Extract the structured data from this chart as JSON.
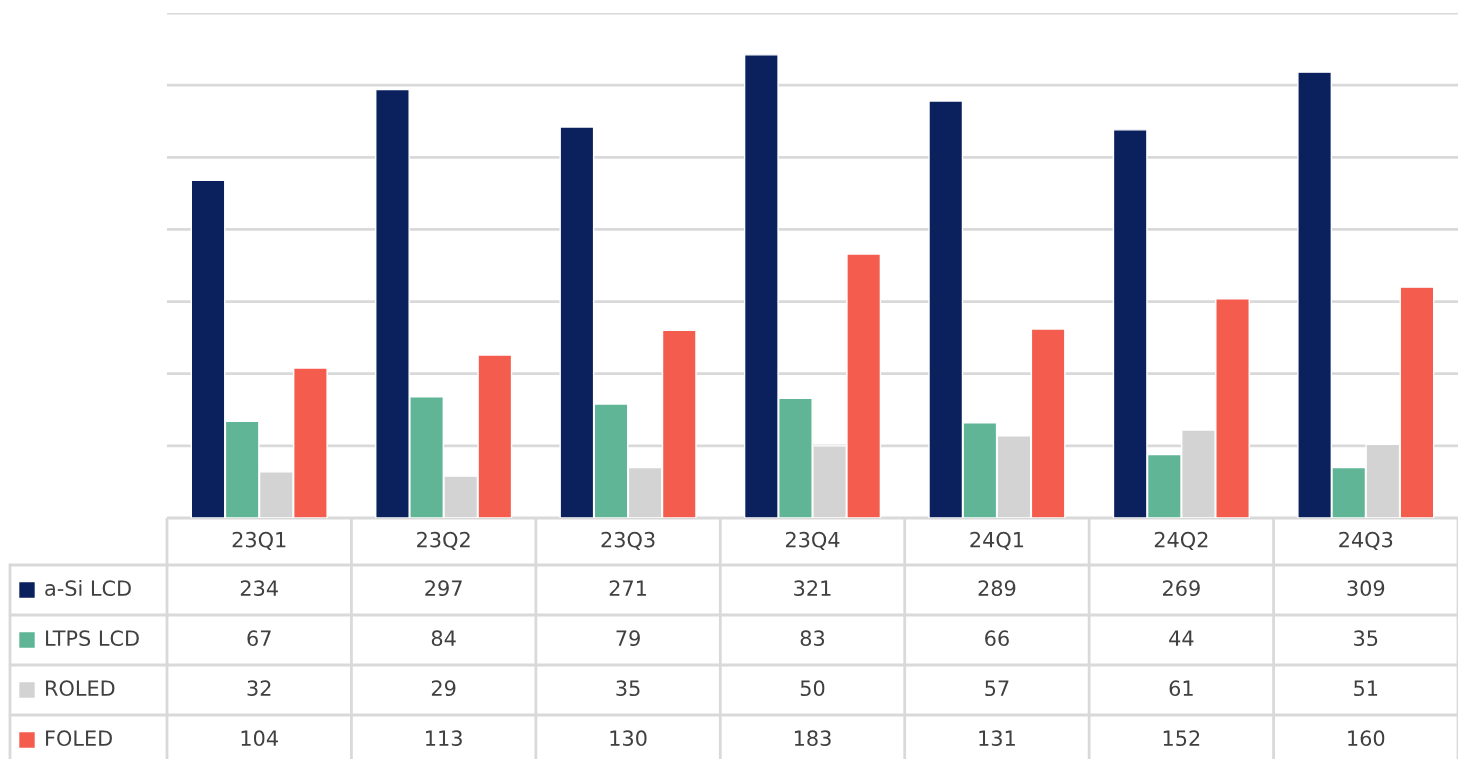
{
  "chart_data": {
    "type": "bar",
    "categories": [
      "23Q1",
      "23Q2",
      "23Q3",
      "23Q4",
      "24Q1",
      "24Q2",
      "24Q3"
    ],
    "series": [
      {
        "name": "a-Si LCD",
        "color": "#0b215e",
        "values": [
          234,
          297,
          271,
          321,
          289,
          269,
          309
        ]
      },
      {
        "name": "LTPS LCD",
        "color": "#5fb595",
        "values": [
          67,
          84,
          79,
          83,
          66,
          44,
          35
        ]
      },
      {
        "name": "ROLED",
        "color": "#d3d3d3",
        "values": [
          32,
          29,
          35,
          50,
          57,
          61,
          51
        ]
      },
      {
        "name": "FOLED",
        "color": "#f45c4e",
        "values": [
          104,
          113,
          130,
          183,
          131,
          152,
          160
        ]
      }
    ],
    "ylim": [
      0,
      350
    ],
    "yticks": [
      {
        "value": 0,
        "label": null
      },
      {
        "value": 50,
        "label": null
      },
      {
        "value": 100,
        "label": null
      },
      {
        "value": 150,
        "label": null
      },
      {
        "value": 200,
        "label": null
      },
      {
        "value": 250,
        "label": null
      },
      {
        "value": 300,
        "label": null
      },
      {
        "value": 350,
        "label": null
      }
    ],
    "grid": "y",
    "legend": "bottom",
    "data_labels": true
  }
}
